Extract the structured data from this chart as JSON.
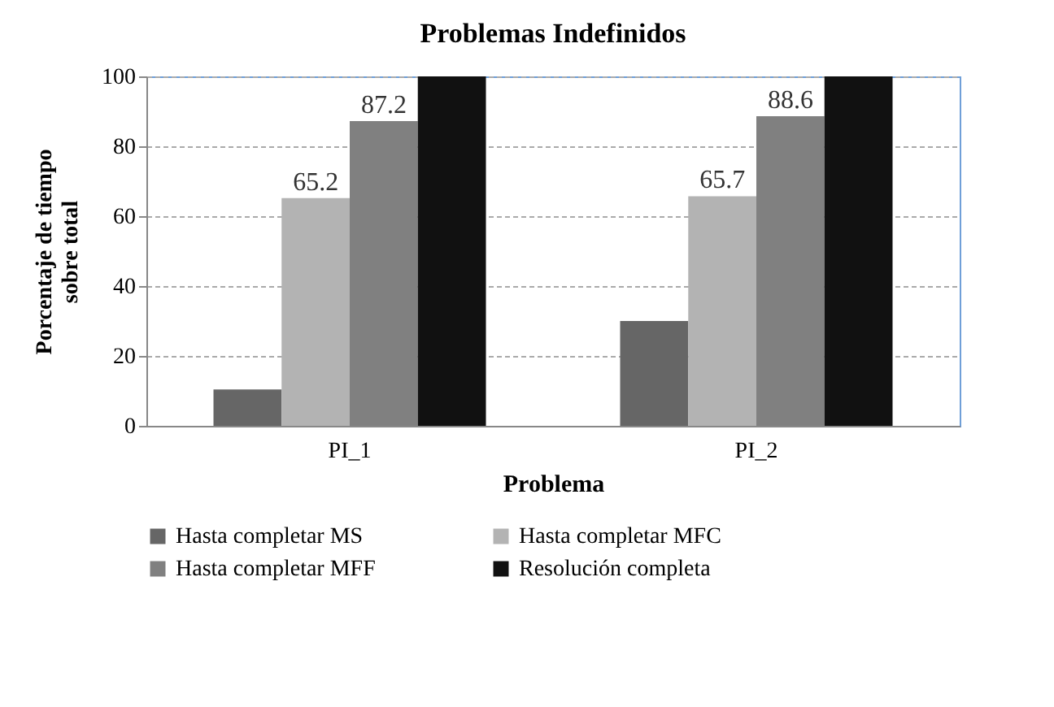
{
  "chart_data": {
    "type": "bar",
    "title": "Problemas Indefinidos",
    "xlabel": "Problema",
    "ylabel": "Porcentaje de tiempo sobre total",
    "categories": [
      "PI_1",
      "PI_2"
    ],
    "series": [
      {
        "name": "Hasta completar MS",
        "color": "#666666",
        "values": [
          10.4,
          30
        ]
      },
      {
        "name": "Hasta completar MFC",
        "color": "#b3b3b3",
        "values": [
          65.2,
          65.7
        ],
        "value_labels": [
          "65.2",
          "65.7"
        ]
      },
      {
        "name": "Hasta completar MFF",
        "color": "#808080",
        "values": [
          87.2,
          88.6
        ],
        "value_labels": [
          "87.2",
          "88.6"
        ]
      },
      {
        "name": "Resolución completa",
        "color": "#111111",
        "values": [
          100,
          100
        ]
      }
    ],
    "ylim": [
      0,
      100
    ],
    "yticks": [
      0,
      20,
      40,
      60,
      80,
      100
    ],
    "grid": "y",
    "legend": "bottom"
  }
}
